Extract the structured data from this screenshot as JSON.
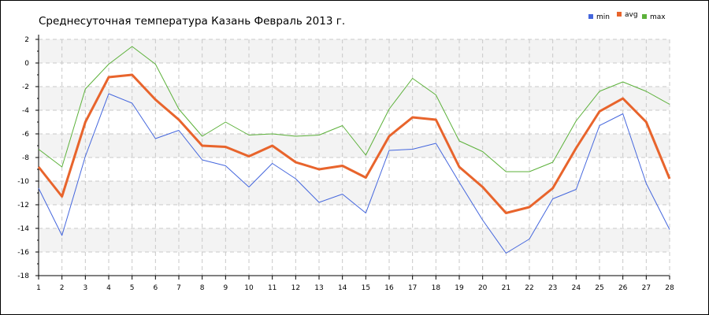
{
  "chart_data": {
    "type": "line",
    "title": "Среднесуточная температура Казань  Февраль 2013 г.",
    "xlabel": "",
    "ylabel": "",
    "ylim": [
      -18,
      2
    ],
    "yticks": [
      -18,
      -16,
      -14,
      -12,
      -10,
      -8,
      -6,
      -4,
      -2,
      0,
      2
    ],
    "x": [
      1,
      2,
      3,
      4,
      5,
      6,
      7,
      8,
      9,
      10,
      11,
      12,
      13,
      14,
      15,
      16,
      17,
      18,
      19,
      20,
      21,
      22,
      23,
      24,
      25,
      26,
      27,
      28
    ],
    "grid": true,
    "legend_position": "top-right",
    "series": [
      {
        "name": "min",
        "color": "#4466dd",
        "values": [
          -10.6,
          -14.6,
          -7.9,
          -2.6,
          -3.4,
          -6.4,
          -5.7,
          -8.2,
          -8.7,
          -10.5,
          -8.5,
          -9.8,
          -11.8,
          -11.1,
          -12.7,
          -7.4,
          -7.3,
          -6.8,
          -10.1,
          -13.3,
          -16.1,
          -14.9,
          -11.5,
          -10.7,
          -5.3,
          -4.3,
          -10.2,
          -14.1
        ]
      },
      {
        "name": "avg",
        "color": "#e8642c",
        "values": [
          -8.8,
          -11.3,
          -5.0,
          -1.2,
          -1.0,
          -3.1,
          -4.8,
          -7.0,
          -7.1,
          -7.9,
          -7.0,
          -8.4,
          -9.0,
          -8.7,
          -9.7,
          -6.2,
          -4.6,
          -4.8,
          -8.8,
          -10.5,
          -12.7,
          -12.2,
          -10.6,
          -7.2,
          -4.1,
          -3.0,
          -5.0,
          -9.8
        ]
      },
      {
        "name": "max",
        "color": "#5cb13a",
        "values": [
          -7.3,
          -8.8,
          -2.2,
          -0.1,
          1.4,
          -0.1,
          -3.9,
          -6.2,
          -5.0,
          -6.1,
          -6.0,
          -6.2,
          -6.1,
          -5.3,
          -7.8,
          -3.9,
          -1.3,
          -2.7,
          -6.6,
          -7.5,
          -9.2,
          -9.2,
          -8.4,
          -4.9,
          -2.4,
          -1.6,
          -2.4,
          -3.5
        ]
      }
    ]
  }
}
